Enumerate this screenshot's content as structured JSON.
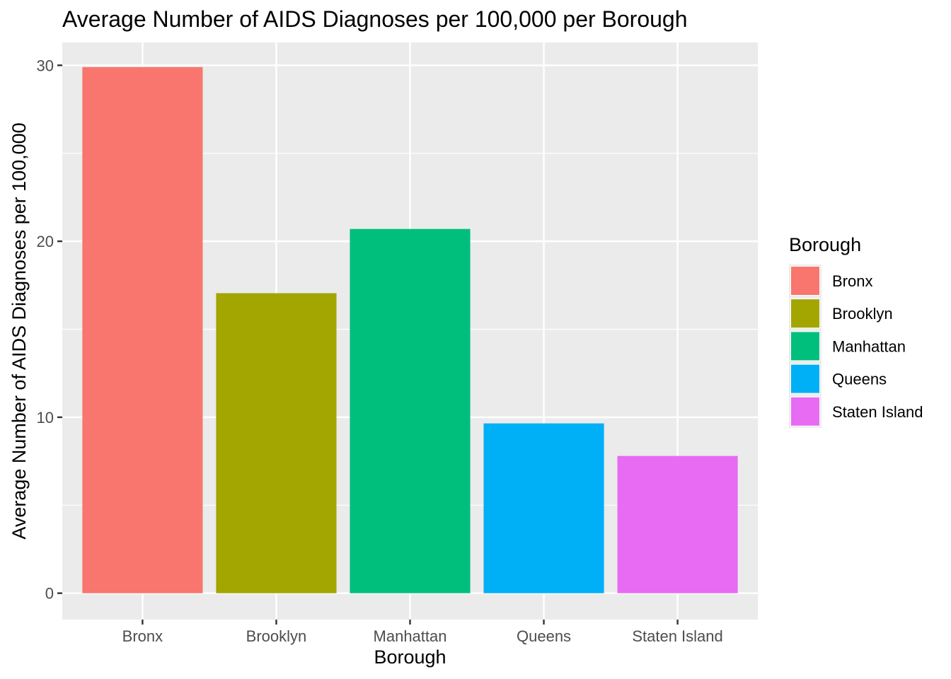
{
  "chart_data": {
    "type": "bar",
    "title": "Average Number of AIDS Diagnoses per 100,000 per Borough",
    "xlabel": "Borough",
    "ylabel": "Average Number of AIDS Diagnoses per 100,000",
    "categories": [
      "Bronx",
      "Brooklyn",
      "Manhattan",
      "Queens",
      "Staten Island"
    ],
    "values": [
      29.9,
      17.05,
      20.7,
      9.65,
      7.8
    ],
    "colors": [
      "#F8766D",
      "#A3A500",
      "#00BF7D",
      "#00B0F6",
      "#E76BF3"
    ],
    "ylim": [
      -1.5,
      31.3
    ],
    "yticks": [
      0,
      10,
      20,
      30
    ],
    "ytick_labels": [
      "0",
      "10",
      "20",
      "30"
    ],
    "grid": true,
    "panel_background": "#EBEBEB",
    "grid_color": "#FFFFFF",
    "legend": {
      "title": "Borough",
      "position": "right",
      "entries": [
        "Bronx",
        "Brooklyn",
        "Manhattan",
        "Queens",
        "Staten Island"
      ]
    }
  }
}
